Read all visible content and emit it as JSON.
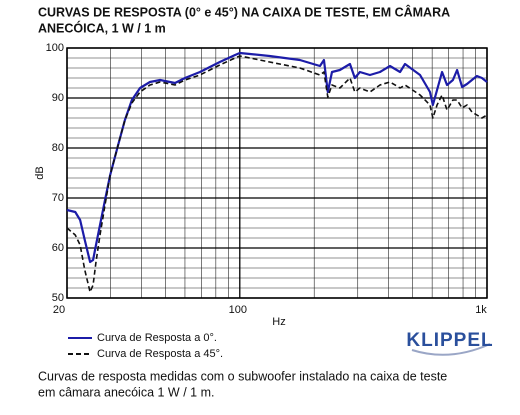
{
  "chart_data": {
    "type": "line",
    "title": [
      "CURVAS DE RESPOSTA (0° e 45°) NA CAIXA DE TESTE, EM CÂMARA",
      "ANECÓICA, 1 W / 1 m"
    ],
    "y_label": "dB",
    "x_label": "Hz",
    "xscale": "log",
    "xlim": [
      20,
      1000
    ],
    "ylim": [
      50,
      100
    ],
    "xticks": [
      20,
      100,
      {
        "value": 1000,
        "label": "1k"
      }
    ],
    "yticks": [
      50,
      60,
      70,
      80,
      90,
      100
    ],
    "xminor": [
      30,
      40,
      50,
      60,
      70,
      80,
      90,
      200,
      300,
      400,
      500,
      600,
      700,
      800,
      900
    ],
    "yminor": [
      52,
      54,
      56,
      58,
      62,
      64,
      66,
      68,
      72,
      74,
      76,
      78,
      82,
      84,
      86,
      88,
      92,
      94,
      96,
      98
    ],
    "grid": true,
    "x": [
      20,
      21.6,
      22.6,
      23.6,
      24.8,
      25.5,
      26.2,
      27.2,
      28.5,
      29.9,
      32.2,
      34.3,
      36.6,
      39.5,
      43.3,
      47.6,
      54.7,
      60,
      69,
      83,
      95.7,
      100,
      110,
      132,
      175,
      211,
      219,
      227,
      236,
      254,
      279,
      292,
      306,
      336,
      369,
      405,
      445,
      466,
      536,
      588,
      604,
      628,
      658,
      689,
      728,
      757,
      793,
      830,
      869,
      910,
      954,
      1000
    ],
    "series": [
      {
        "name": "Curva de Resposta a 0°.",
        "color": "#1c1ca8",
        "dash": "solid",
        "values": [
          67.6,
          67.2,
          65.6,
          61.6,
          57.2,
          57.6,
          60.6,
          64.6,
          69.6,
          74.6,
          80.6,
          85.6,
          89.6,
          92,
          93.2,
          93.6,
          93,
          94,
          95.2,
          97.2,
          98.6,
          99,
          98.8,
          98.4,
          97.6,
          96.4,
          97.6,
          91.2,
          95.2,
          95.6,
          96.8,
          94,
          95.2,
          94.6,
          95.2,
          96.4,
          95.2,
          96.8,
          94.6,
          91.2,
          88.6,
          91.6,
          95.2,
          92.6,
          93.6,
          95.6,
          92.2,
          92.8,
          93.6,
          94.4,
          94,
          93.2
        ]
      },
      {
        "name": "Curva de Resposta a 45°.",
        "color": "#111111",
        "dash": "dashed",
        "values": [
          64,
          62.6,
          60.6,
          55.6,
          51.2,
          52.6,
          57.2,
          62.6,
          68.6,
          74.6,
          80.6,
          85.6,
          89,
          91.2,
          92.6,
          93.2,
          92.6,
          93.6,
          94.6,
          96.6,
          98,
          98.4,
          98,
          97.2,
          96,
          94.6,
          95.2,
          90.2,
          92.6,
          92,
          94,
          91.2,
          92,
          91.2,
          92.6,
          93.2,
          92,
          92.6,
          90.6,
          88.6,
          86,
          88.6,
          90.6,
          87.6,
          89.6,
          89.6,
          88,
          88.6,
          87.2,
          86.6,
          86,
          86.6
        ]
      }
    ],
    "logo": "KLIPPEL",
    "caption": [
      "Curvas de resposta medidas com o subwoofer instalado na caixa de teste",
      "em câmara anecóica 1 W / 1 m."
    ]
  }
}
